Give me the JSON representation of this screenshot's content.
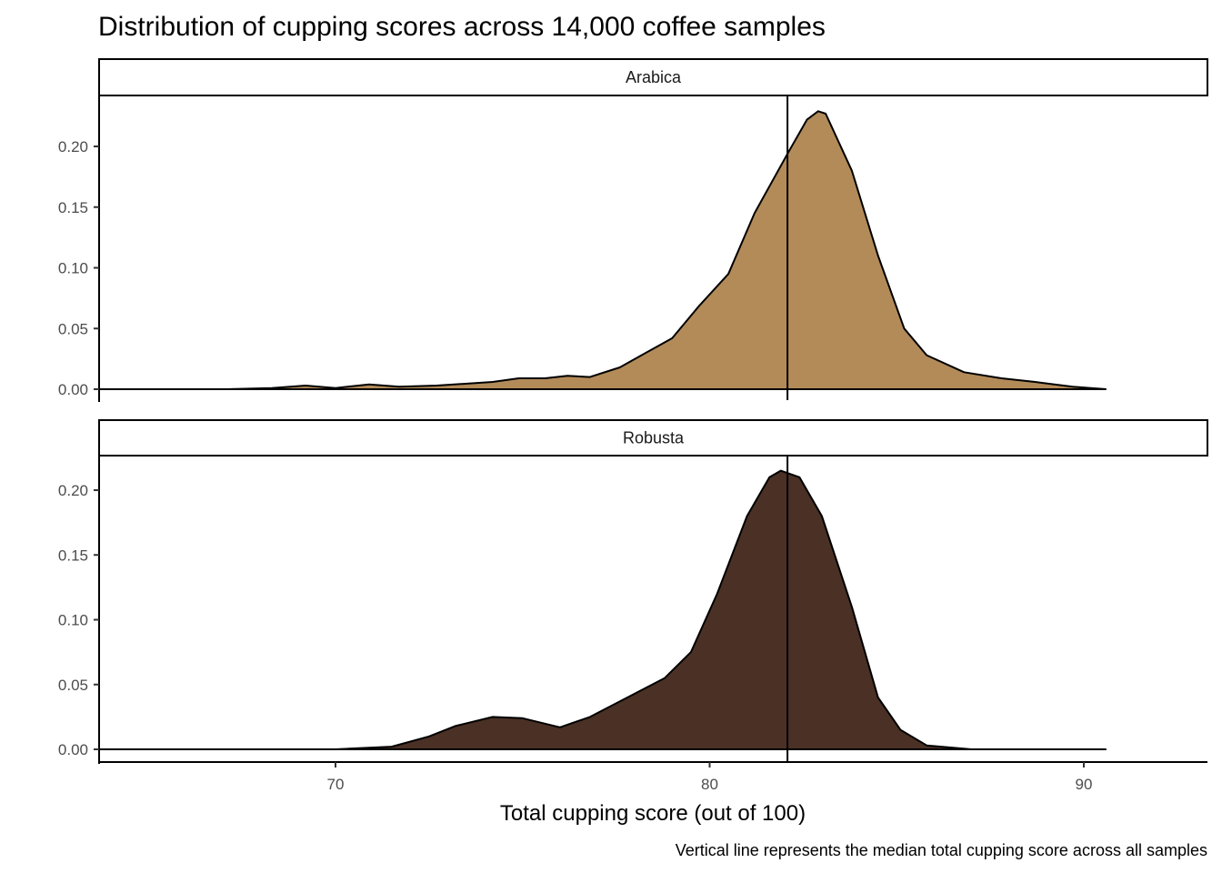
{
  "chart_data": {
    "type": "area",
    "title": "Distribution of cupping scores across 14,000 coffee samples",
    "xlabel": "Total cupping score (out of 100)",
    "caption": "Vertical line represents the median total cupping score across all samples",
    "xlim": [
      63.7,
      93.3
    ],
    "x_ticks": [
      "70",
      "80",
      "90"
    ],
    "x_tick_values": [
      70,
      80,
      90
    ],
    "median": 82.08,
    "panels": [
      {
        "name": "Arabica",
        "color": "#B38B59",
        "ylim": [
          0,
          0.24
        ],
        "y_ticks": [
          "0.00",
          "0.05",
          "0.10",
          "0.15",
          "0.20"
        ],
        "y_tick_values": [
          0,
          0.05,
          0.1,
          0.15,
          0.2
        ],
        "x": [
          63.7,
          67.1,
          68.3,
          69.2,
          70.0,
          70.9,
          71.7,
          72.7,
          74.2,
          74.9,
          75.6,
          76.2,
          76.8,
          77.6,
          78.3,
          79.0,
          79.7,
          80.5,
          81.2,
          82.1,
          82.6,
          82.9,
          83.1,
          83.8,
          84.5,
          85.2,
          85.8,
          86.8,
          87.8,
          88.7,
          89.7,
          90.6
        ],
        "y": [
          0,
          0,
          0.001,
          0.003,
          0.001,
          0.004,
          0.002,
          0.003,
          0.006,
          0.009,
          0.009,
          0.011,
          0.01,
          0.018,
          0.03,
          0.042,
          0.068,
          0.095,
          0.145,
          0.195,
          0.222,
          0.229,
          0.227,
          0.18,
          0.11,
          0.05,
          0.028,
          0.014,
          0.009,
          0.006,
          0.002,
          0
        ]
      },
      {
        "name": "Robusta",
        "color": "#4A3025",
        "ylim": [
          0,
          0.22
        ],
        "y_ticks": [
          "0.00",
          "0.05",
          "0.10",
          "0.15",
          "0.20"
        ],
        "y_tick_values": [
          0,
          0.05,
          0.1,
          0.15,
          0.2
        ],
        "x": [
          63.7,
          70.0,
          71.5,
          72.5,
          73.2,
          74.2,
          75.0,
          76.0,
          76.8,
          77.8,
          78.8,
          79.5,
          80.2,
          81.0,
          81.6,
          81.9,
          82.4,
          83.0,
          83.8,
          84.5,
          85.1,
          85.8,
          87.0,
          90.6
        ],
        "y": [
          0,
          0,
          0.002,
          0.01,
          0.018,
          0.025,
          0.024,
          0.017,
          0.025,
          0.04,
          0.055,
          0.075,
          0.12,
          0.18,
          0.21,
          0.215,
          0.21,
          0.18,
          0.11,
          0.04,
          0.015,
          0.003,
          0,
          0
        ]
      }
    ]
  }
}
